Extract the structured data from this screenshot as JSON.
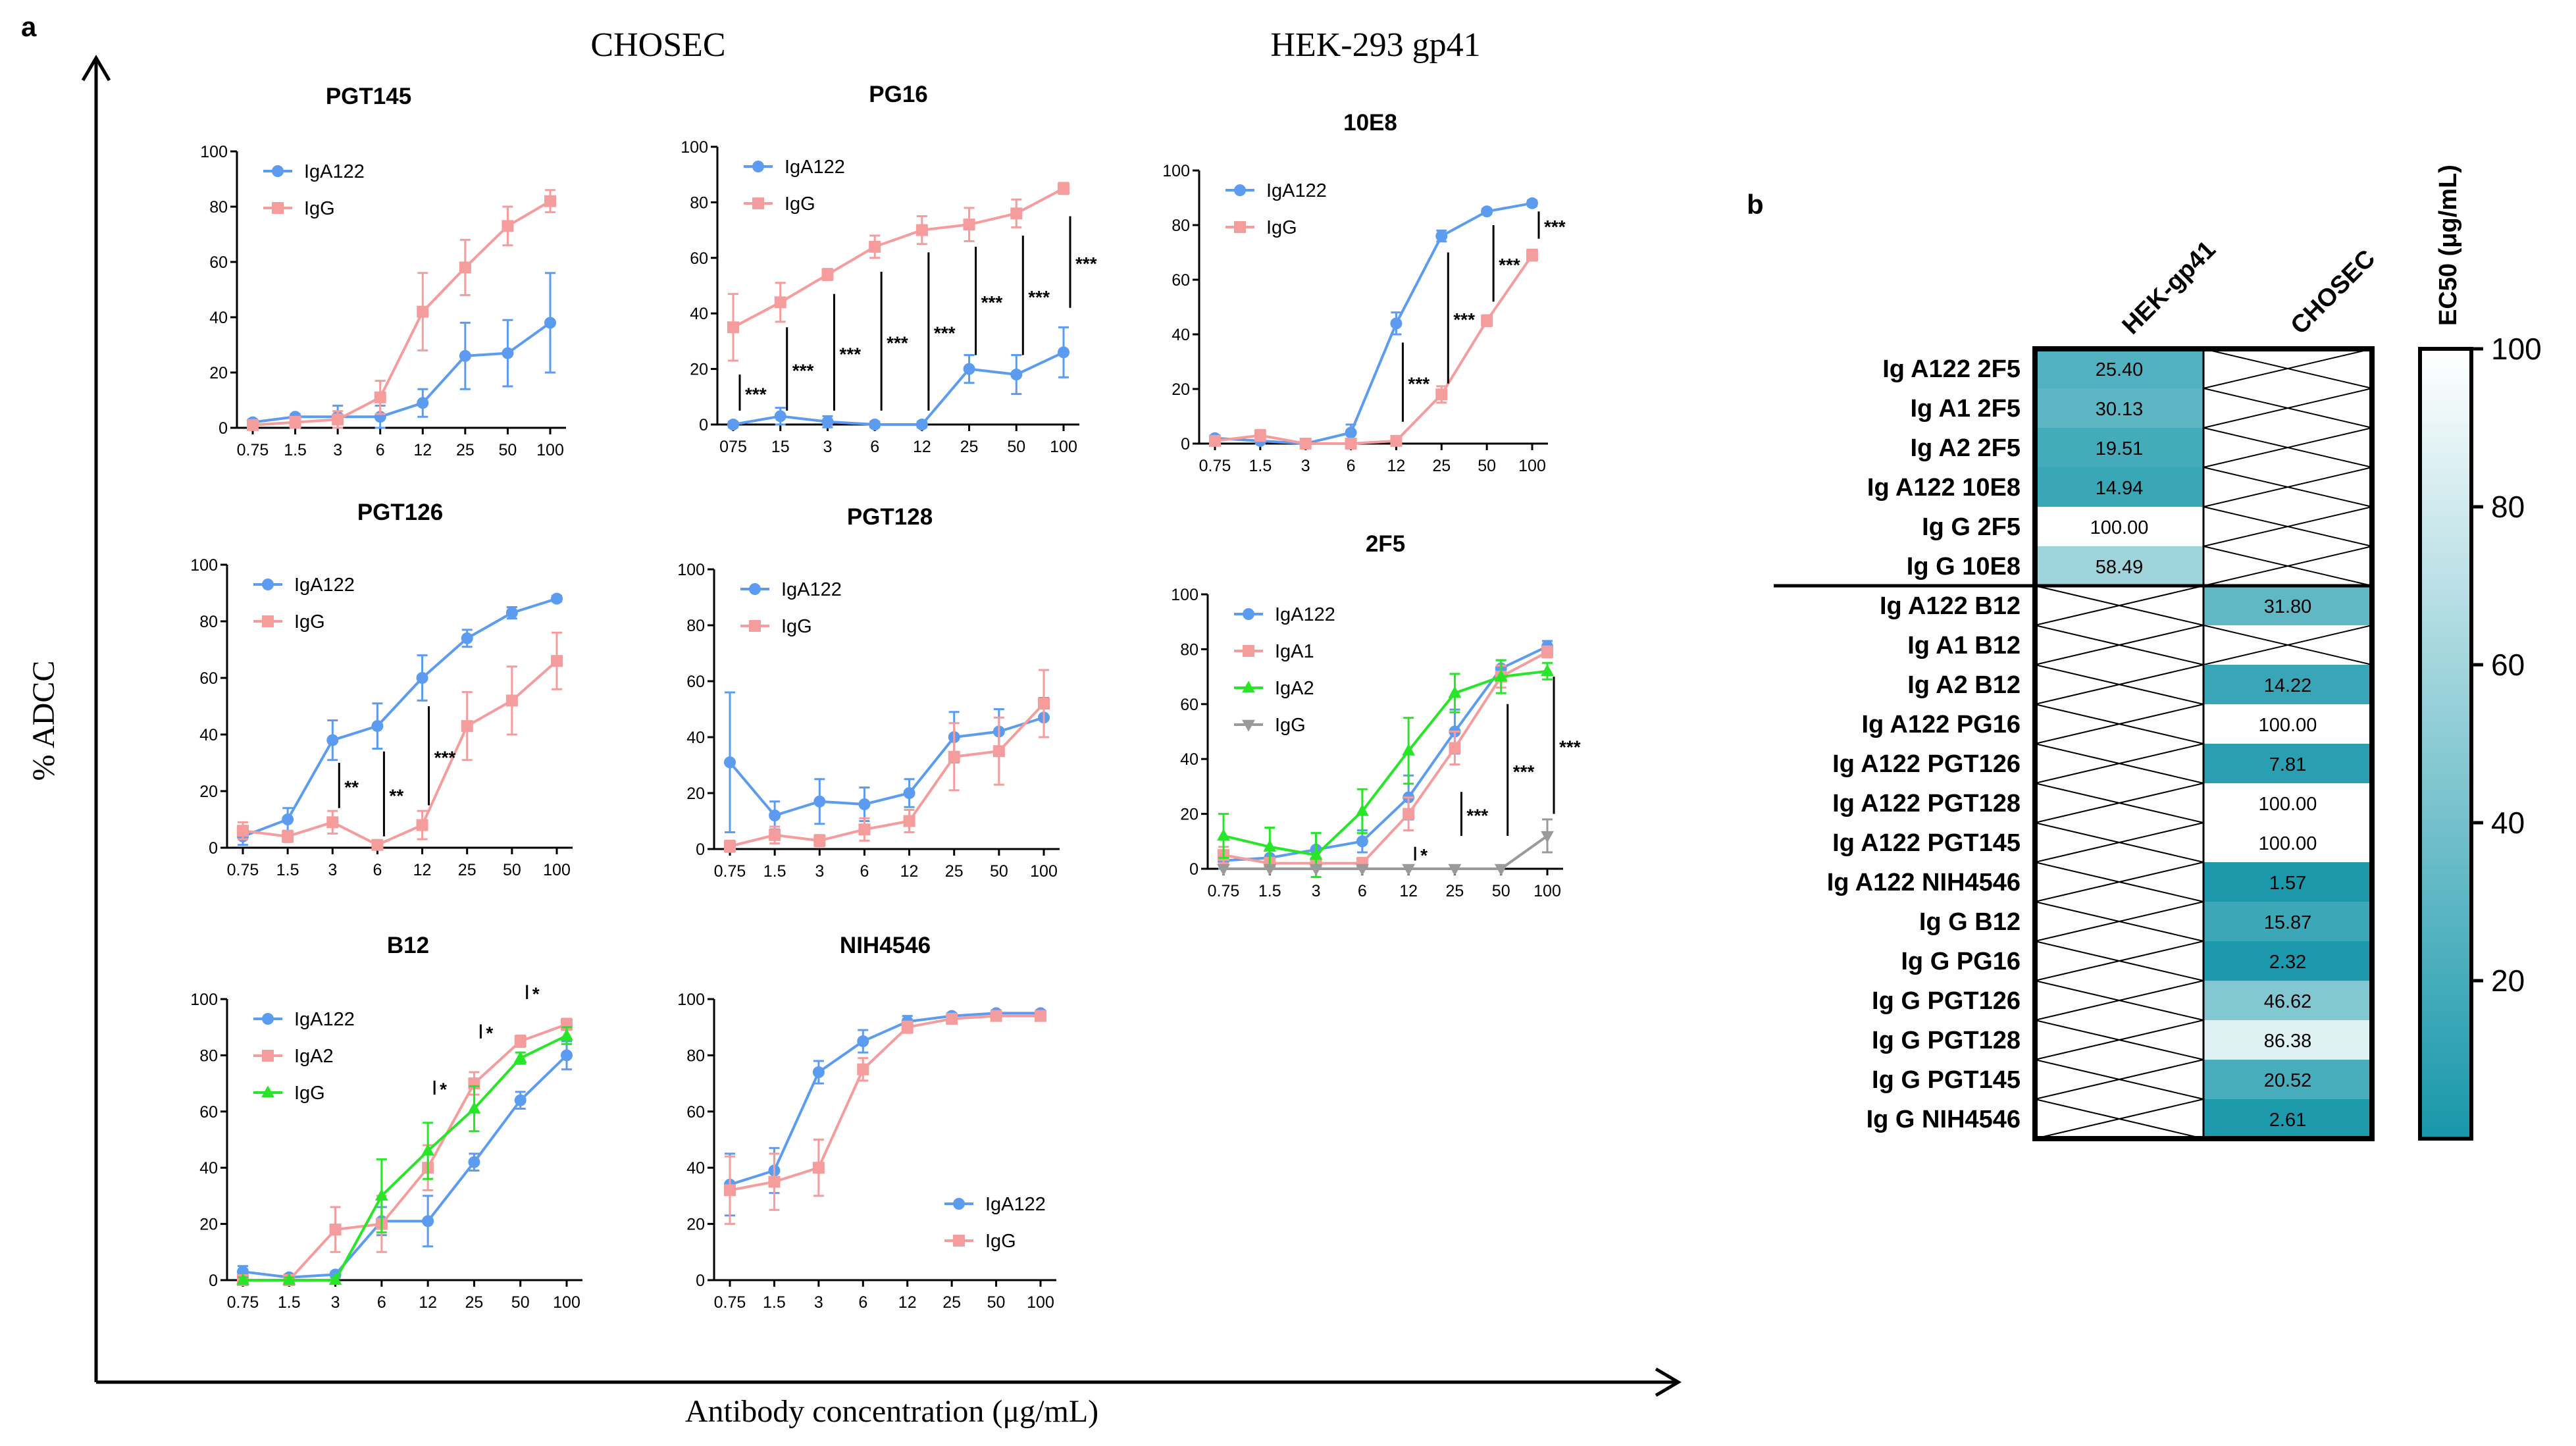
{
  "figure": {
    "panel_a": "a",
    "panel_b": "b",
    "group_chosec": "CHOSEC",
    "group_hek": "HEK-293 gp41",
    "y_axis_title": "% ADCC",
    "x_axis_title": "Antibody concentration  (μg/mL)"
  },
  "colors": {
    "IgA122": "#5b9cf0",
    "IgG_pink": "#f59c9c",
    "IgA1": "#f59c9c",
    "IgA2_pink": "#f59c9c",
    "IgA2_green": "#27e627",
    "IgG_green": "#27e627",
    "IgG_gray": "#9a9a9a",
    "heat_low": "#1797aa",
    "heat_high": "#ffffff"
  },
  "chart_data": [
    {
      "id": "pgt145",
      "type": "line",
      "title": "PGT145",
      "categories": [
        "0.75",
        "1.5",
        "3",
        "6",
        "12",
        "25",
        "50",
        "100"
      ],
      "ylim": [
        0,
        100
      ],
      "yticks": [
        0,
        20,
        40,
        60,
        80,
        100
      ],
      "legend": "top-left",
      "series": [
        {
          "name": "IgA122",
          "color": "#5b9cf0",
          "marker": "circle",
          "values": [
            2,
            4,
            4,
            4,
            9,
            26,
            27,
            38
          ],
          "errors": [
            1,
            1,
            4,
            4,
            5,
            12,
            12,
            18
          ]
        },
        {
          "name": "IgG",
          "color": "#f59c9c",
          "marker": "square",
          "values": [
            1,
            2,
            3,
            11,
            42,
            58,
            73,
            82
          ],
          "errors": [
            1,
            2,
            3,
            6,
            14,
            10,
            7,
            4
          ]
        }
      ],
      "sig": []
    },
    {
      "id": "pg16",
      "type": "line",
      "title": "PG16",
      "categories": [
        "075",
        "15",
        "3",
        "6",
        "12",
        "25",
        "50",
        "100"
      ],
      "ylim": [
        0,
        100
      ],
      "yticks": [
        0,
        20,
        40,
        60,
        80,
        100
      ],
      "legend": "top-left",
      "series": [
        {
          "name": "IgA122",
          "color": "#5b9cf0",
          "marker": "circle",
          "values": [
            0,
            3,
            1,
            0,
            0,
            20,
            18,
            26
          ],
          "errors": [
            1,
            3,
            2,
            1,
            1,
            5,
            7,
            9
          ]
        },
        {
          "name": "IgG",
          "color": "#f59c9c",
          "marker": "square",
          "values": [
            35,
            44,
            54,
            64,
            70,
            72,
            76,
            85
          ],
          "errors": [
            12,
            7,
            2,
            4,
            5,
            6,
            5,
            2
          ]
        }
      ],
      "sig": [
        {
          "i": 0,
          "y0": 5,
          "y1": 18,
          "label": "***"
        },
        {
          "i": 1,
          "y0": 5,
          "y1": 35,
          "label": "***"
        },
        {
          "i": 2,
          "y0": 5,
          "y1": 47,
          "label": "***"
        },
        {
          "i": 3,
          "y0": 5,
          "y1": 55,
          "label": "***"
        },
        {
          "i": 4,
          "y0": 5,
          "y1": 62,
          "label": "***"
        },
        {
          "i": 5,
          "y0": 25,
          "y1": 64,
          "label": "***"
        },
        {
          "i": 6,
          "y0": 25,
          "y1": 68,
          "label": "***"
        },
        {
          "i": 7,
          "y0": 42,
          "y1": 75,
          "label": "***"
        }
      ]
    },
    {
      "id": "10e8",
      "type": "line",
      "title": "10E8",
      "categories": [
        "0.75",
        "1.5",
        "3",
        "6",
        "12",
        "25",
        "50",
        "100"
      ],
      "ylim": [
        0,
        100
      ],
      "yticks": [
        0,
        20,
        40,
        60,
        80,
        100
      ],
      "legend": "top-left",
      "series": [
        {
          "name": "IgA122",
          "color": "#5b9cf0",
          "marker": "circle",
          "values": [
            2,
            1,
            0,
            4,
            44,
            76,
            85,
            88
          ],
          "errors": [
            1,
            1,
            1,
            3,
            4,
            2,
            1,
            1
          ]
        },
        {
          "name": "IgG",
          "color": "#f59c9c",
          "marker": "square",
          "values": [
            1,
            3,
            0,
            0,
            1,
            18,
            45,
            69
          ],
          "errors": [
            1,
            2,
            1,
            1,
            1,
            3,
            2,
            2
          ]
        }
      ],
      "sig": [
        {
          "i": 4,
          "y0": 8,
          "y1": 37,
          "label": "***"
        },
        {
          "i": 5,
          "y0": 22,
          "y1": 70,
          "label": "***"
        },
        {
          "i": 6,
          "y0": 52,
          "y1": 80,
          "label": "***"
        },
        {
          "i": 7,
          "y0": 75,
          "y1": 85,
          "label": "***"
        }
      ]
    },
    {
      "id": "pgt126",
      "type": "line",
      "title": "PGT126",
      "categories": [
        "0.75",
        "1.5",
        "3",
        "6",
        "12",
        "25",
        "50",
        "100"
      ],
      "ylim": [
        0,
        100
      ],
      "yticks": [
        0,
        20,
        40,
        60,
        80,
        100
      ],
      "legend": "top-left",
      "series": [
        {
          "name": "IgA122",
          "color": "#5b9cf0",
          "marker": "circle",
          "values": [
            4,
            10,
            38,
            43,
            60,
            74,
            83,
            88
          ],
          "errors": [
            3,
            4,
            7,
            8,
            8,
            3,
            2,
            1
          ]
        },
        {
          "name": "IgG",
          "color": "#f59c9c",
          "marker": "square",
          "values": [
            6,
            4,
            9,
            1,
            8,
            43,
            52,
            66
          ],
          "errors": [
            3,
            2,
            4,
            1,
            5,
            12,
            12,
            10
          ]
        }
      ],
      "sig": [
        {
          "i": 2,
          "y0": 14,
          "y1": 30,
          "label": "**"
        },
        {
          "i": 3,
          "y0": 4,
          "y1": 34,
          "label": "**"
        },
        {
          "i": 4,
          "y0": 15,
          "y1": 50,
          "label": "***"
        }
      ]
    },
    {
      "id": "pgt128",
      "type": "line",
      "title": "PGT128",
      "categories": [
        "0.75",
        "1.5",
        "3",
        "6",
        "12",
        "25",
        "50",
        "100"
      ],
      "ylim": [
        0,
        100
      ],
      "yticks": [
        0,
        20,
        40,
        60,
        80,
        100
      ],
      "legend": "top-left",
      "series": [
        {
          "name": "IgA122",
          "color": "#5b9cf0",
          "marker": "circle",
          "values": [
            31,
            12,
            17,
            16,
            20,
            40,
            42,
            47
          ],
          "errors": [
            25,
            5,
            8,
            6,
            5,
            9,
            8,
            7
          ]
        },
        {
          "name": "IgG",
          "color": "#f59c9c",
          "marker": "square",
          "values": [
            1,
            5,
            3,
            7,
            10,
            33,
            35,
            52
          ],
          "errors": [
            2,
            3,
            2,
            4,
            4,
            12,
            12,
            12
          ]
        }
      ],
      "sig": []
    },
    {
      "id": "2f5",
      "type": "line",
      "title": "2F5",
      "categories": [
        "0.75",
        "1.5",
        "3",
        "6",
        "12",
        "25",
        "50",
        "100"
      ],
      "ylim": [
        0,
        100
      ],
      "yticks": [
        0,
        20,
        40,
        60,
        80,
        100
      ],
      "legend": "top-left",
      "series": [
        {
          "name": "IgA122",
          "color": "#5b9cf0",
          "marker": "circle",
          "values": [
            3,
            4,
            7,
            10,
            26,
            50,
            73,
            81
          ],
          "errors": [
            3,
            3,
            6,
            4,
            8,
            8,
            3,
            2
          ]
        },
        {
          "name": "IgA1",
          "color": "#f59c9c",
          "marker": "square",
          "values": [
            5,
            2,
            2,
            2,
            20,
            44,
            70,
            79
          ],
          "errors": [
            3,
            2,
            2,
            2,
            6,
            6,
            4,
            2
          ]
        },
        {
          "name": "IgA2",
          "color": "#27e627",
          "marker": "triangle",
          "values": [
            12,
            8,
            5,
            21,
            43,
            64,
            70,
            72
          ],
          "errors": [
            8,
            7,
            8,
            8,
            12,
            7,
            6,
            3
          ]
        },
        {
          "name": "IgG",
          "color": "#9a9a9a",
          "marker": "triangle-down",
          "values": [
            0,
            0,
            0,
            0,
            0,
            0,
            0,
            12
          ],
          "errors": [
            0,
            0,
            0,
            0,
            0,
            0,
            0,
            6
          ]
        }
      ],
      "sig": [
        {
          "i": 4,
          "y0": 3,
          "y1": 8,
          "label": "*"
        },
        {
          "i": 5,
          "y0": 12,
          "y1": 28,
          "label": "***"
        },
        {
          "i": 6,
          "y0": 12,
          "y1": 60,
          "label": "***"
        },
        {
          "i": 7,
          "y0": 20,
          "y1": 70,
          "label": "***"
        }
      ]
    },
    {
      "id": "b12",
      "type": "line",
      "title": "B12",
      "categories": [
        "0.75",
        "1.5",
        "3",
        "6",
        "12",
        "25",
        "50",
        "100"
      ],
      "ylim": [
        0,
        100
      ],
      "yticks": [
        0,
        20,
        40,
        60,
        80,
        100
      ],
      "legend": "top-left",
      "series": [
        {
          "name": "IgA122",
          "color": "#5b9cf0",
          "marker": "circle",
          "values": [
            3,
            1,
            2,
            21,
            21,
            42,
            64,
            80
          ],
          "errors": [
            2,
            1,
            1,
            5,
            9,
            3,
            3,
            5
          ]
        },
        {
          "name": "IgA2",
          "color": "#f59c9c",
          "marker": "square",
          "values": [
            0,
            0,
            18,
            20,
            40,
            70,
            85,
            91
          ],
          "errors": [
            1,
            1,
            8,
            10,
            8,
            4,
            2,
            2
          ]
        },
        {
          "name": "IgG",
          "color": "#27e627",
          "marker": "triangle",
          "values": [
            0,
            0,
            0,
            30,
            46,
            61,
            79,
            87
          ],
          "errors": [
            1,
            1,
            1,
            13,
            10,
            8,
            2,
            3
          ]
        }
      ],
      "sig": [
        {
          "i": 4,
          "y0": 66,
          "y1": 71,
          "label": "*"
        },
        {
          "i": 5,
          "y0": 86,
          "y1": 91,
          "label": "*"
        },
        {
          "i": 6,
          "y0": 100,
          "y1": 105,
          "label": "*"
        }
      ]
    },
    {
      "id": "nih4546",
      "type": "line",
      "title": "NIH4546",
      "categories": [
        "0.75",
        "1.5",
        "3",
        "6",
        "12",
        "25",
        "50",
        "100"
      ],
      "ylim": [
        0,
        100
      ],
      "yticks": [
        0,
        20,
        40,
        60,
        80,
        100
      ],
      "legend": "bottom-right",
      "series": [
        {
          "name": "IgA122",
          "color": "#5b9cf0",
          "marker": "circle",
          "values": [
            34,
            39,
            74,
            85,
            92,
            94,
            95,
            95
          ],
          "errors": [
            11,
            8,
            4,
            4,
            2,
            1,
            1,
            1
          ]
        },
        {
          "name": "IgG",
          "color": "#f59c9c",
          "marker": "square",
          "values": [
            32,
            35,
            40,
            75,
            90,
            93,
            94,
            94
          ],
          "errors": [
            12,
            10,
            10,
            4,
            2,
            1,
            1,
            1
          ]
        }
      ],
      "sig": []
    },
    {
      "id": "heatmap",
      "type": "heatmap",
      "title": "EC50 (μg/mL)",
      "columns": [
        "HEK-gp41",
        "CHOSEC"
      ],
      "rows": [
        "Ig A122 2F5",
        "Ig A1 2F5",
        "Ig A2 2F5",
        "Ig A122 10E8",
        "Ig G 2F5",
        "Ig G 10E8",
        "Ig A122 B12",
        "Ig A1 B12",
        "Ig A2 B12",
        "Ig A122 PG16",
        "Ig A122 PGT126",
        "Ig A122 PGT128",
        "Ig A122 PGT145",
        "Ig A122 NIH4546",
        "Ig G B12",
        "Ig G PG16",
        "Ig G PGT126",
        "Ig G PGT128",
        "Ig G PGT145",
        "Ig G NIH4546"
      ],
      "values": [
        [
          25.4,
          null
        ],
        [
          30.13,
          null
        ],
        [
          19.51,
          null
        ],
        [
          14.94,
          null
        ],
        [
          100.0,
          null
        ],
        [
          58.49,
          null
        ],
        [
          null,
          31.8
        ],
        [
          null,
          null
        ],
        [
          null,
          14.22
        ],
        [
          null,
          100.0
        ],
        [
          null,
          7.81
        ],
        [
          null,
          100.0
        ],
        [
          null,
          100.0
        ],
        [
          null,
          1.57
        ],
        [
          null,
          15.87
        ],
        [
          null,
          2.32
        ],
        [
          null,
          46.62
        ],
        [
          null,
          86.38
        ],
        [
          null,
          20.52
        ],
        [
          null,
          2.61
        ]
      ],
      "labels": [
        [
          "25.40",
          ""
        ],
        [
          "30.13",
          ""
        ],
        [
          "19.51",
          ""
        ],
        [
          "14.94",
          ""
        ],
        [
          "100.00",
          ""
        ],
        [
          "58.49",
          ""
        ],
        [
          "",
          "31.80"
        ],
        [
          "",
          ""
        ],
        [
          "",
          "14.22"
        ],
        [
          "",
          "100.00"
        ],
        [
          "",
          "7.81"
        ],
        [
          "",
          "100.00"
        ],
        [
          "",
          "100.00"
        ],
        [
          "",
          "1.57"
        ],
        [
          "",
          "15.87"
        ],
        [
          "",
          "2.32"
        ],
        [
          "",
          "46.62"
        ],
        [
          "",
          "86.38"
        ],
        [
          "",
          "20.52"
        ],
        [
          "",
          "2.61"
        ]
      ],
      "separator_after_row": 6,
      "colorbar": {
        "range": [
          0,
          100
        ],
        "ticks": [
          "20",
          "40",
          "60",
          "80",
          "100"
        ]
      }
    }
  ]
}
